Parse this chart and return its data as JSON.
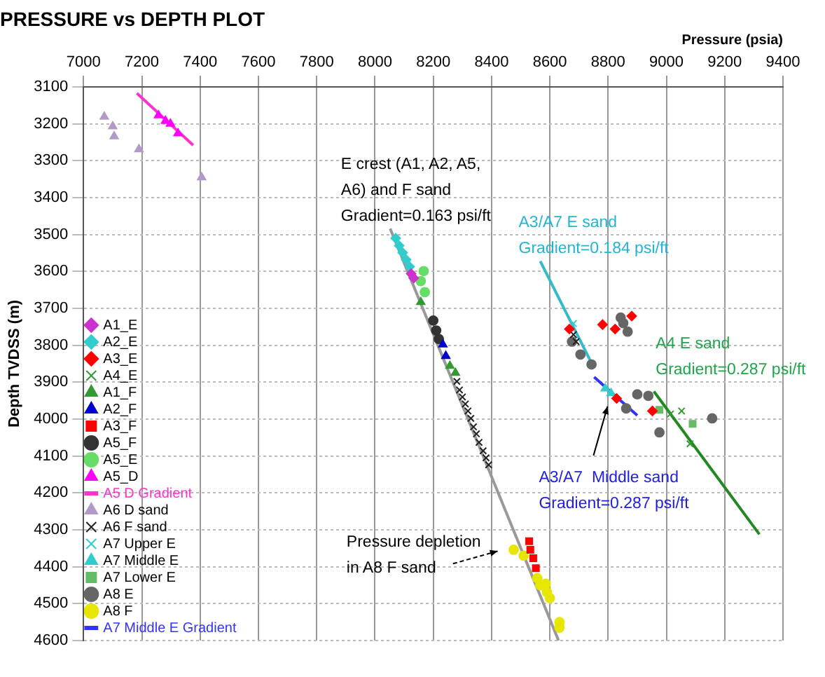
{
  "chart_data": {
    "type": "scatter",
    "title": "PRESSURE vs DEPTH PLOT",
    "xlabel": "Pressure (psia)",
    "ylabel": "Depth TVDSS (m)",
    "xlim": [
      7000,
      9400
    ],
    "xticks": [
      7000,
      7200,
      7400,
      7600,
      7800,
      8000,
      8200,
      8400,
      8600,
      8800,
      9000,
      9200,
      9400
    ],
    "ylim": [
      4600,
      3100
    ],
    "yticks": [
      3100,
      3200,
      3300,
      3400,
      3500,
      3600,
      3700,
      3800,
      3900,
      4000,
      4100,
      4200,
      4300,
      4400,
      4500,
      4600
    ],
    "grid": true,
    "legend": "bottom left",
    "series": [
      {
        "name": "A1_E",
        "color": "#cc33cc",
        "marker": "diamond",
        "x": [
          8124,
          8133
        ],
        "values": [
          3606,
          3618
        ]
      },
      {
        "name": "A2_E",
        "color": "#33cccc",
        "marker": "diamond",
        "x": [
          8071,
          8083,
          8095,
          8107,
          8119
        ],
        "values": [
          3510,
          3530,
          3549,
          3568,
          3587
        ]
      },
      {
        "name": "A3_E",
        "color": "#ff0000",
        "marker": "diamond",
        "x": [
          8667,
          8781,
          8824,
          8881,
          8829,
          8952
        ],
        "values": [
          3756,
          3744,
          3756,
          3721,
          3944,
          3978
        ]
      },
      {
        "name": "A4_E",
        "color": "#339933",
        "marker": "cross",
        "x": [
          9014,
          9052,
          9081
        ],
        "values": [
          3986,
          3978,
          4067
        ]
      },
      {
        "name": "A1_F",
        "color": "#339933",
        "marker": "triangle",
        "x": [
          8157,
          8257,
          8276
        ],
        "values": [
          3683,
          3856,
          3875
        ]
      },
      {
        "name": "A2_F",
        "color": "#0000cc",
        "marker": "triangle",
        "x": [
          8233,
          8243
        ],
        "values": [
          3798,
          3829
        ]
      },
      {
        "name": "A3_F",
        "color": "#ff0000",
        "marker": "square",
        "x": [
          8529,
          8533,
          8543,
          8552
        ],
        "values": [
          4331,
          4354,
          4377,
          4404
        ]
      },
      {
        "name": "A5_F",
        "color": "#333333",
        "marker": "circle",
        "x": [
          8200,
          8210,
          8219
        ],
        "values": [
          3733,
          3760,
          3783
        ]
      },
      {
        "name": "A5_E",
        "color": "#66dd66",
        "marker": "circle",
        "x": [
          8167,
          8157,
          8171
        ],
        "values": [
          3599,
          3626,
          3656
        ]
      },
      {
        "name": "A5_D",
        "color": "#ff00ff",
        "marker": "triangle",
        "x": [
          7257,
          7281,
          7298,
          7324
        ],
        "values": [
          3177,
          3192,
          3200,
          3226
        ]
      },
      {
        "name": "A5 D Gradient",
        "color": "#ff33cc",
        "type": "line",
        "marker": "none",
        "x": [
          7183,
          7376
        ],
        "values": [
          3117,
          3258
        ]
      },
      {
        "name": "A6 D sand",
        "color": "#b399c7",
        "marker": "triangle",
        "x": [
          7071,
          7100,
          7105,
          7190,
          7405
        ],
        "values": [
          3181,
          3207,
          3234,
          3269,
          3345
        ]
      },
      {
        "name": "A6 F sand",
        "color": "#222222",
        "marker": "cross",
        "x": [
          8281,
          8290,
          8300,
          8310,
          8319,
          8329,
          8338,
          8348,
          8357,
          8371,
          8381,
          8390,
          8681,
          8690
        ],
        "values": [
          3898,
          3921,
          3940,
          3959,
          3978,
          3998,
          4021,
          4040,
          4063,
          4086,
          4105,
          4124,
          3771,
          3790
        ]
      },
      {
        "name": "A7 Upper E",
        "color": "#33cccc",
        "marker": "cross",
        "x": [
          8681
        ],
        "values": [
          3741
        ]
      },
      {
        "name": "A7 Middle E",
        "color": "#33cccc",
        "marker": "triangle",
        "x": [
          8790,
          8810
        ],
        "values": [
          3917,
          3930
        ]
      },
      {
        "name": "A7 Lower E",
        "color": "#66bb66",
        "marker": "square",
        "x": [
          8976,
          9090
        ],
        "values": [
          3975,
          4013
        ]
      },
      {
        "name": "A8 E",
        "color": "#666666",
        "marker": "circle",
        "x": [
          8843,
          8852,
          8867,
          8676,
          8705,
          8743,
          8900,
          8938,
          8862,
          8976,
          9157
        ],
        "values": [
          3725,
          3740,
          3763,
          3790,
          3825,
          3852,
          3933,
          3937,
          3971,
          4036,
          3998
        ]
      },
      {
        "name": "A8 F",
        "color": "#e6e600",
        "marker": "circle",
        "x": [
          8476,
          8510,
          8557,
          8567,
          8586,
          8590,
          8600,
          8633,
          8633
        ],
        "values": [
          4354,
          4370,
          4431,
          4450,
          4446,
          4469,
          4485,
          4550,
          4565
        ]
      },
      {
        "name": "A7 Middle E Gradient",
        "color": "#3333ff",
        "type": "line",
        "marker": "none",
        "x": [
          8752,
          8900
        ],
        "values": [
          3886,
          3990
        ]
      },
      {
        "color": "#33bbcc",
        "type": "line",
        "marker": "none",
        "x": [
          8567,
          8743
        ],
        "values": [
          3572,
          3848
        ]
      },
      {
        "color": "#228822",
        "type": "line",
        "marker": "none",
        "x": [
          8957,
          9319
        ],
        "values": [
          3925,
          4312
        ]
      },
      {
        "color": "#999999",
        "type": "line",
        "marker": "none",
        "x": [
          8052,
          8630
        ],
        "values": [
          3484,
          4600
        ]
      }
    ],
    "annotations": [
      "E crest (A1, A2, A5,\nA6) and F sand\nGradient=0.163 psi/ft",
      "A3/A7 E sand\nGradient=0.184 psi/ft",
      "A4 E sand\nGradient=0.287 psi/ft",
      "A3/A7  Middle sand\nGradient=0.287 psi/ft",
      "Pressure depletion\nin A8 F sand"
    ]
  }
}
